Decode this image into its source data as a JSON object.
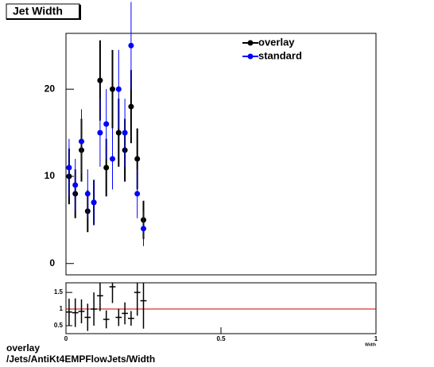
{
  "chart_data": [
    {
      "type": "errorbar",
      "title": "Jet Width",
      "x": [
        0.01,
        0.03,
        0.05,
        0.07,
        0.09,
        0.11,
        0.13,
        0.15,
        0.17,
        0.19,
        0.21,
        0.23,
        0.25
      ],
      "series": [
        {
          "name": "overlay",
          "color": "#000000",
          "values": [
            10,
            8,
            13,
            6,
            7,
            21,
            11,
            20,
            15,
            13,
            18,
            12,
            5
          ],
          "errors": [
            3.2,
            2.8,
            3.6,
            2.4,
            2.6,
            4.6,
            3.3,
            4.5,
            3.9,
            3.6,
            4.2,
            3.5,
            2.2
          ]
        },
        {
          "name": "standard",
          "color": "#0000ff",
          "values": [
            11,
            9,
            14,
            8,
            7,
            15,
            16,
            12,
            20,
            15,
            25,
            8,
            4
          ],
          "errors": [
            3.3,
            3.0,
            3.7,
            2.8,
            2.6,
            3.9,
            4.0,
            3.5,
            4.5,
            3.9,
            5.0,
            2.8,
            2.0
          ]
        }
      ],
      "xlim": [
        0,
        1
      ],
      "ylim": [
        -1.3,
        26.4
      ],
      "yticks": [
        0,
        10,
        20
      ],
      "legend": "top-right"
    },
    {
      "type": "ratio",
      "x_label": "Width",
      "x": [
        0.01,
        0.03,
        0.05,
        0.07,
        0.09,
        0.11,
        0.13,
        0.15,
        0.17,
        0.19,
        0.21,
        0.23,
        0.25
      ],
      "bin_width": 0.02,
      "values": [
        0.91,
        0.89,
        0.93,
        0.75,
        1.0,
        1.4,
        0.69,
        1.67,
        0.75,
        0.87,
        0.72,
        1.5,
        1.25
      ],
      "errors": [
        0.4,
        0.43,
        0.36,
        0.41,
        0.5,
        0.46,
        0.27,
        0.49,
        0.26,
        0.33,
        0.22,
        0.7,
        0.84
      ],
      "color": "#000000",
      "reference": 1,
      "reference_color": "#cc0000",
      "xlim": [
        0,
        1
      ],
      "ylim": [
        0.26,
        1.79
      ],
      "xticks": [
        0,
        0.5,
        1
      ],
      "yticks": [
        0.5,
        1,
        1.5
      ]
    }
  ],
  "footer": {
    "line1": "overlay",
    "line2": "/Jets/AntiKt4EMPFlowJets/Width"
  }
}
